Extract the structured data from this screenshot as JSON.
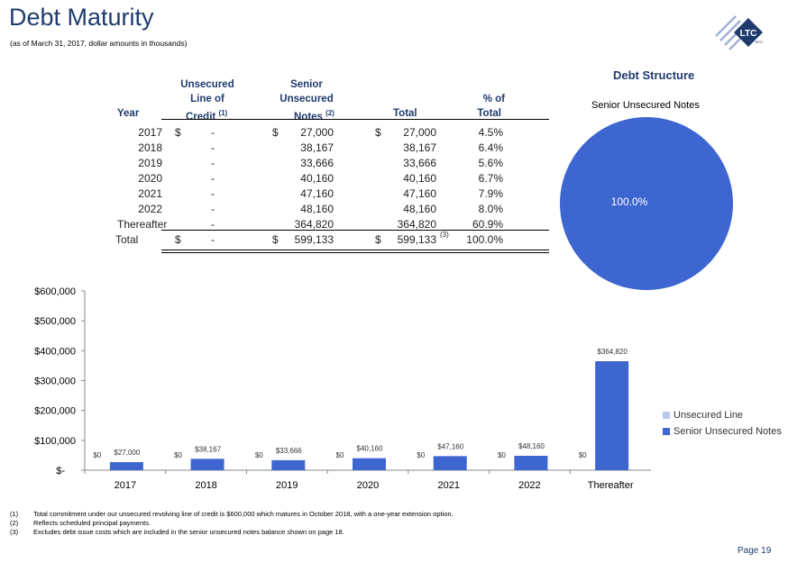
{
  "page": {
    "title": "Debt Maturity",
    "subtitle": "(as of March 31, 2017, dollar amounts in thousands)",
    "logo_text": "LTC",
    "logo_subtext": "REIT",
    "page_label": "Page 19",
    "colors": {
      "navy": "#1F3B6E",
      "bar": "#3E66D1",
      "unsecured": "#B9C9EE"
    }
  },
  "table": {
    "headers": {
      "year": "Year",
      "unsecured_l1": "Unsecured",
      "unsecured_l2": "Line of",
      "unsecured_l3": "Credit",
      "unsecured_sup": "(1)",
      "senior_l1": "Senior",
      "senior_l2": "Unsecured",
      "senior_l3": "Notes",
      "senior_sup": "(2)",
      "total": "Total",
      "pct_l1": "% of",
      "pct_l2": "Total"
    },
    "rows": [
      {
        "year": "2017",
        "d1": "$",
        "credit": "-",
        "d2": "$",
        "notes": "27,000",
        "d3": "$",
        "total": "27,000",
        "pct": "4.5%"
      },
      {
        "year": "2018",
        "d1": "",
        "credit": "-",
        "d2": "",
        "notes": "38,167",
        "d3": "",
        "total": "38,167",
        "pct": "6.4%"
      },
      {
        "year": "2019",
        "d1": "",
        "credit": "-",
        "d2": "",
        "notes": "33,666",
        "d3": "",
        "total": "33,666",
        "pct": "5.6%"
      },
      {
        "year": "2020",
        "d1": "",
        "credit": "-",
        "d2": "",
        "notes": "40,160",
        "d3": "",
        "total": "40,160",
        "pct": "6.7%"
      },
      {
        "year": "2021",
        "d1": "",
        "credit": "-",
        "d2": "",
        "notes": "47,160",
        "d3": "",
        "total": "47,160",
        "pct": "7.9%"
      },
      {
        "year": "2022",
        "d1": "",
        "credit": "-",
        "d2": "",
        "notes": "48,160",
        "d3": "",
        "total": "48,160",
        "pct": "8.0%"
      },
      {
        "year": "Thereafter",
        "d1": "",
        "credit": "-",
        "d2": "",
        "notes": "364,820",
        "d3": "",
        "total": "364,820",
        "pct": "60.9%"
      }
    ],
    "total_row": {
      "year": "Total",
      "d1": "$",
      "credit": "-",
      "d2": "$",
      "notes": "599,133",
      "d3": "$",
      "total": "599,133",
      "sup": "(3)",
      "pct": "100.0%"
    }
  },
  "footnotes": [
    {
      "num": "(1)",
      "text": "Total commitment under our unsecured revolving line of credit is $600,000 which matures in October 2018, with a one-year extension option."
    },
    {
      "num": "(2)",
      "text": "Reflects scheduled principal payments."
    },
    {
      "num": "(3)",
      "text": "Excludes debt issue costs which are included in the senior unsecured notes balance shown on page 18."
    }
  ],
  "chart_data": [
    {
      "type": "pie",
      "title": "Debt Structure",
      "slices": [
        {
          "label": "Senior Unsecured Notes",
          "value": 100.0,
          "display": "100.0%",
          "color": "#3E66D1"
        }
      ]
    },
    {
      "type": "bar",
      "categories": [
        "2017",
        "2018",
        "2019",
        "2020",
        "2021",
        "2022",
        "Thereafter"
      ],
      "series": [
        {
          "name": "Unsecured Line",
          "color": "#B9C9EE",
          "values": [
            0,
            0,
            0,
            0,
            0,
            0,
            0
          ],
          "labels": [
            "$0",
            "$0",
            "$0",
            "$0",
            "$0",
            "$0",
            "$0"
          ]
        },
        {
          "name": "Senior Unsecured Notes",
          "color": "#3E66D1",
          "values": [
            27000,
            38167,
            33666,
            40160,
            47160,
            48160,
            364820
          ],
          "labels": [
            "$27,000",
            "$38,167",
            "$33,666",
            "$40,160",
            "$47,160",
            "$48,160",
            "$364,820"
          ]
        }
      ],
      "ylim": [
        0,
        600000
      ],
      "yticks": [
        0,
        100000,
        200000,
        300000,
        400000,
        500000,
        600000
      ],
      "ytick_labels": [
        "$-",
        "$100,000",
        "$200,000",
        "$300,000",
        "$400,000",
        "$500,000",
        "$600,000"
      ],
      "legend_position": "right"
    }
  ]
}
